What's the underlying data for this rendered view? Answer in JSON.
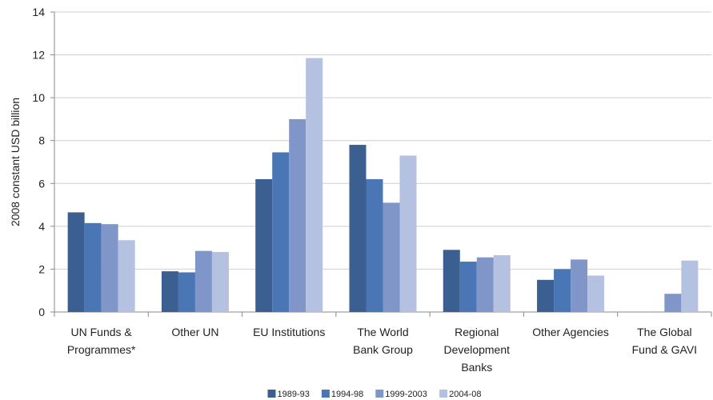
{
  "chart_data": {
    "type": "bar",
    "title": "",
    "xlabel": "",
    "ylabel": "2008 constant USD billion",
    "ylim": [
      0,
      14
    ],
    "yticks": [
      0,
      2,
      4,
      6,
      8,
      10,
      12,
      14
    ],
    "ytick_labels": [
      "0",
      "2",
      "4",
      "6",
      "8",
      "10",
      "12",
      "14"
    ],
    "grid": true,
    "legend_position": "bottom",
    "categories": [
      [
        "UN Funds &",
        "Programmes*"
      ],
      [
        "Other UN"
      ],
      [
        "EU Institutions"
      ],
      [
        "The World",
        "Bank Group"
      ],
      [
        "Regional",
        "Development",
        "Banks"
      ],
      [
        "Other Agencies"
      ],
      [
        "The Global",
        "Fund & GAVI"
      ]
    ],
    "series": [
      {
        "name": "1989-93",
        "color": "#3B5F91",
        "values": [
          4.65,
          1.9,
          6.2,
          7.8,
          2.9,
          1.5,
          0
        ]
      },
      {
        "name": "1994-98",
        "color": "#4A76B5",
        "values": [
          4.15,
          1.85,
          7.45,
          6.2,
          2.35,
          2.0,
          0
        ]
      },
      {
        "name": "1999-2003",
        "color": "#8096C9",
        "values": [
          4.1,
          2.85,
          9.0,
          5.1,
          2.55,
          2.45,
          0.85
        ]
      },
      {
        "name": "2004-08",
        "color": "#B4C1E0",
        "values": [
          3.35,
          2.8,
          11.85,
          7.3,
          2.65,
          1.7,
          2.4
        ]
      }
    ]
  }
}
